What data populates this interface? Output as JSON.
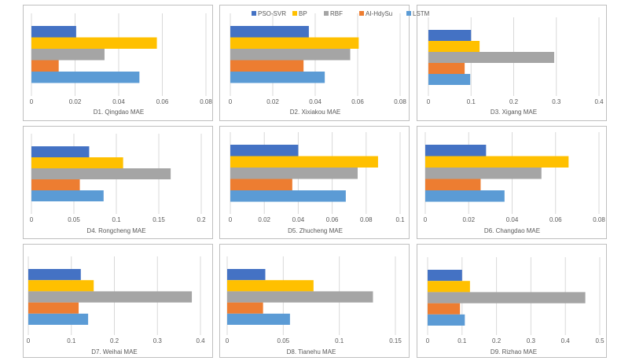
{
  "legend": [
    {
      "name": "PSO-SVR",
      "color": "#4472c4"
    },
    {
      "name": "BP",
      "color": "#ffc000"
    },
    {
      "name": "RBF",
      "color": "#a5a5a5"
    },
    {
      "name": "AI-HdySu",
      "color": "#ed7d31"
    },
    {
      "name": "LSTM",
      "color": "#5b9bd5"
    }
  ],
  "chart_data": [
    {
      "type": "bar",
      "orientation": "horizontal",
      "title": "D1. Qingdao MAE",
      "ticks": [
        "0",
        "0.02",
        "0.04",
        "0.06",
        "0.08"
      ],
      "xlim": [
        0,
        0.08
      ],
      "series": [
        {
          "name": "PSO-SVR",
          "value": 0.0205
        },
        {
          "name": "BP",
          "value": 0.0575
        },
        {
          "name": "RBF",
          "value": 0.0335
        },
        {
          "name": "AI-HdySu",
          "value": 0.0125
        },
        {
          "name": "LSTM",
          "value": 0.0495
        }
      ]
    },
    {
      "type": "bar",
      "orientation": "horizontal",
      "title": "D2. Xixiakou MAE",
      "ticks": [
        "0",
        "0.02",
        "0.04",
        "0.06",
        "0.08"
      ],
      "xlim": [
        0,
        0.08
      ],
      "series": [
        {
          "name": "PSO-SVR",
          "value": 0.037
        },
        {
          "name": "BP",
          "value": 0.0605
        },
        {
          "name": "RBF",
          "value": 0.0565
        },
        {
          "name": "AI-HdySu",
          "value": 0.0345
        },
        {
          "name": "LSTM",
          "value": 0.0445
        }
      ]
    },
    {
      "type": "bar",
      "orientation": "horizontal",
      "title": "D3. Xigang MAE",
      "ticks": [
        "0",
        "0.1",
        "0.2",
        "0.3",
        "0.4"
      ],
      "xlim": [
        0,
        0.4
      ],
      "series": [
        {
          "name": "PSO-SVR",
          "value": 0.1
        },
        {
          "name": "BP",
          "value": 0.12
        },
        {
          "name": "RBF",
          "value": 0.295
        },
        {
          "name": "AI-HdySu",
          "value": 0.085
        },
        {
          "name": "LSTM",
          "value": 0.098
        }
      ]
    },
    {
      "type": "bar",
      "orientation": "horizontal",
      "title": "D4. Rongcheng MAE",
      "ticks": [
        "0",
        "0.05",
        "0.1",
        "0.15",
        "0.2"
      ],
      "xlim": [
        0,
        0.2
      ],
      "series": [
        {
          "name": "PSO-SVR",
          "value": 0.068
        },
        {
          "name": "BP",
          "value": 0.108
        },
        {
          "name": "RBF",
          "value": 0.164
        },
        {
          "name": "AI-HdySu",
          "value": 0.057
        },
        {
          "name": "LSTM",
          "value": 0.085
        }
      ]
    },
    {
      "type": "bar",
      "orientation": "horizontal",
      "title": "D5. Zhucheng MAE",
      "ticks": [
        "0",
        "0.02",
        "0.04",
        "0.06",
        "0.08",
        "0.1"
      ],
      "xlim": [
        0,
        0.1
      ],
      "series": [
        {
          "name": "PSO-SVR",
          "value": 0.04
        },
        {
          "name": "BP",
          "value": 0.087
        },
        {
          "name": "RBF",
          "value": 0.075
        },
        {
          "name": "AI-HdySu",
          "value": 0.0365
        },
        {
          "name": "LSTM",
          "value": 0.068
        }
      ]
    },
    {
      "type": "bar",
      "orientation": "horizontal",
      "title": "D6. Changdao MAE",
      "ticks": [
        "0",
        "0.02",
        "0.04",
        "0.06",
        "0.08"
      ],
      "xlim": [
        0,
        0.08
      ],
      "series": [
        {
          "name": "PSO-SVR",
          "value": 0.028
        },
        {
          "name": "BP",
          "value": 0.066
        },
        {
          "name": "RBF",
          "value": 0.0535
        },
        {
          "name": "AI-HdySu",
          "value": 0.0255
        },
        {
          "name": "LSTM",
          "value": 0.0365
        }
      ]
    },
    {
      "type": "bar",
      "orientation": "horizontal",
      "title": "D7. Weihai MAE",
      "ticks": [
        "0",
        "0.1",
        "0.2",
        "0.3",
        "0.4"
      ],
      "xlim": [
        0,
        0.4
      ],
      "series": [
        {
          "name": "PSO-SVR",
          "value": 0.122
        },
        {
          "name": "BP",
          "value": 0.152
        },
        {
          "name": "RBF",
          "value": 0.38
        },
        {
          "name": "AI-HdySu",
          "value": 0.117
        },
        {
          "name": "LSTM",
          "value": 0.139
        }
      ]
    },
    {
      "type": "bar",
      "orientation": "horizontal",
      "title": "D8. Tianehu MAE",
      "ticks": [
        "0",
        "0.05",
        "0.1",
        "0.15"
      ],
      "xlim": [
        0,
        0.15
      ],
      "series": [
        {
          "name": "PSO-SVR",
          "value": 0.034
        },
        {
          "name": "BP",
          "value": 0.077
        },
        {
          "name": "RBF",
          "value": 0.13
        },
        {
          "name": "AI-HdySu",
          "value": 0.032
        },
        {
          "name": "LSTM",
          "value": 0.056
        }
      ]
    },
    {
      "type": "bar",
      "orientation": "horizontal",
      "title": "D9. Rizhao MAE",
      "ticks": [
        "0",
        "0.1",
        "0.2",
        "0.3",
        "0.4",
        "0.5"
      ],
      "xlim": [
        0,
        0.5
      ],
      "series": [
        {
          "name": "PSO-SVR",
          "value": 0.1
        },
        {
          "name": "BP",
          "value": 0.123
        },
        {
          "name": "RBF",
          "value": 0.458
        },
        {
          "name": "AI-HdySu",
          "value": 0.094
        },
        {
          "name": "LSTM",
          "value": 0.108
        }
      ]
    }
  ]
}
